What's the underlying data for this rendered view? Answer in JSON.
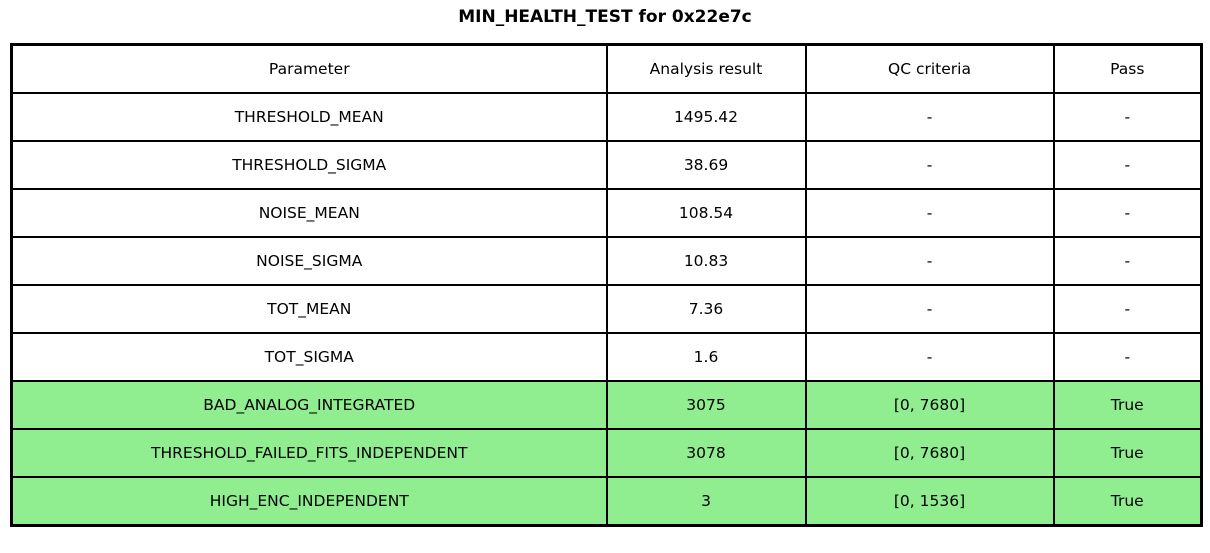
{
  "chart_data": {
    "type": "table",
    "title": "MIN_HEALTH_TEST for 0x22e7c",
    "columns": [
      "Parameter",
      "Analysis result",
      "QC criteria",
      "Pass"
    ],
    "rows": [
      [
        "THRESHOLD_MEAN",
        "1495.42",
        "-",
        "-"
      ],
      [
        "THRESHOLD_SIGMA",
        "38.69",
        "-",
        "-"
      ],
      [
        "NOISE_MEAN",
        "108.54",
        "-",
        "-"
      ],
      [
        "NOISE_SIGMA",
        "10.83",
        "-",
        "-"
      ],
      [
        "TOT_MEAN",
        "7.36",
        "-",
        "-"
      ],
      [
        "TOT_SIGMA",
        "1.6",
        "-",
        "-"
      ],
      [
        "BAD_ANALOG_INTEGRATED",
        "3075",
        "[0, 7680]",
        "True"
      ],
      [
        "THRESHOLD_FAILED_FITS_INDEPENDENT",
        "3078",
        "[0, 7680]",
        "True"
      ],
      [
        "HIGH_ENC_INDEPENDENT",
        "3",
        "[0, 1536]",
        "True"
      ]
    ],
    "highlighted_rows": [
      6,
      7,
      8
    ],
    "highlight_color": "#90EE90",
    "colors": {
      "pass_green": "#90EE90",
      "border": "#000000",
      "background": "#FFFFFF",
      "text": "#000000"
    }
  }
}
